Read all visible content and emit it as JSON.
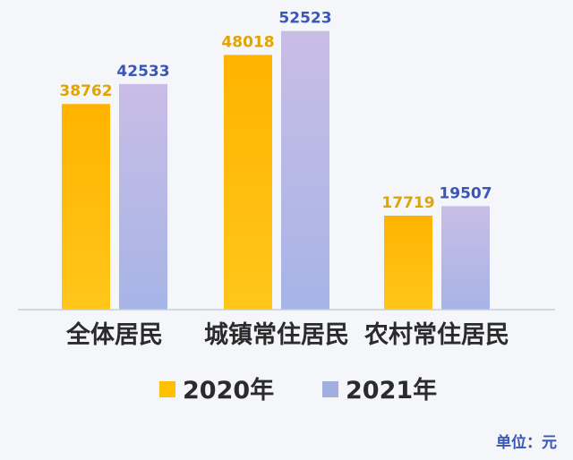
{
  "chart_data": {
    "type": "bar",
    "categories": [
      "全体居民",
      "城镇常住居民",
      "农村常住居民"
    ],
    "series": [
      {
        "name": "2020年",
        "values": [
          38762,
          48018,
          17719
        ],
        "color": "#ffc000",
        "label_color": "#e2a400"
      },
      {
        "name": "2021年",
        "values": [
          42533,
          52523,
          19507
        ],
        "color": "#a2aee0",
        "label_color": "#3a56b8"
      }
    ],
    "ylim": [
      0,
      55000
    ],
    "grid": false,
    "legend_position": "bottom-center",
    "unit_text": "单位：元"
  }
}
